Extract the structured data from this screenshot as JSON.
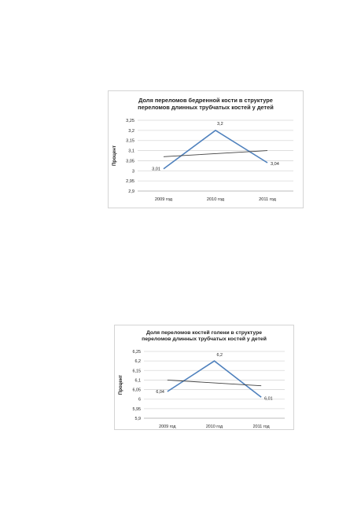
{
  "chart_data": [
    {
      "type": "line",
      "title": [
        "Доля переломов бедренной кости в структуре",
        "переломов длинных трубчатых костей у детей"
      ],
      "ylabel": "Процент",
      "xlabel": "",
      "categories": [
        "2009 год",
        "2010 год",
        "2011 год"
      ],
      "series": [
        {
          "values": [
            3.01,
            3.2,
            3.04
          ],
          "labels": [
            "3,01",
            "3,2",
            "3,04"
          ],
          "color": "#4f81bd"
        },
        {
          "values": [
            3.07,
            3.085,
            3.1
          ],
          "color": "#404040",
          "trendline": true
        }
      ],
      "ylim": [
        2.9,
        3.25
      ],
      "yticks": [
        "2,9",
        "2,95",
        "3",
        "3,05",
        "3,1",
        "3,15",
        "3,2",
        "3,25"
      ],
      "grid": true
    },
    {
      "type": "line",
      "title": [
        "Доля переломов костей голени в структуре",
        "переломов длинных трубчатых костей у детей"
      ],
      "ylabel": "Процент",
      "xlabel": "",
      "categories": [
        "2009 год",
        "2010 год",
        "2011 год"
      ],
      "series": [
        {
          "values": [
            6.04,
            6.2,
            6.01
          ],
          "labels": [
            "6,04",
            "6,2",
            "6,01"
          ],
          "color": "#4f81bd"
        },
        {
          "values": [
            6.1,
            6.085,
            6.07
          ],
          "color": "#404040",
          "trendline": true
        }
      ],
      "ylim": [
        5.9,
        6.25
      ],
      "yticks": [
        "5,9",
        "5,95",
        "6",
        "6,05",
        "6,1",
        "6,15",
        "6,2",
        "6,25"
      ],
      "grid": true
    }
  ]
}
